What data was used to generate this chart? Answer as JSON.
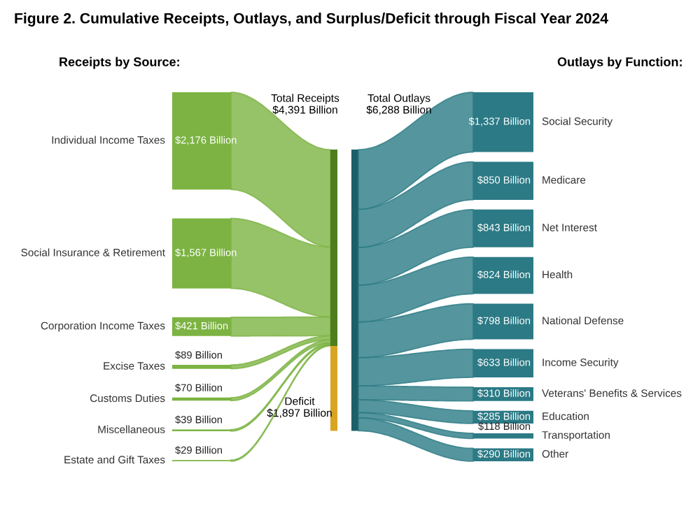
{
  "chart_data": [
    {
      "type": "other",
      "title": "Figure 2. Cumulative Receipts, Outlays, and Surplus/Deficit through Fiscal Year 2024",
      "subtitle": "Receipts by Source:",
      "categories": [
        "Individual Income Taxes",
        "Social Insurance & Retirement",
        "Corporation Income Taxes",
        "Excise Taxes",
        "Customs Duties",
        "Miscellaneous",
        "Estate and Gift Taxes"
      ],
      "values": [
        2176,
        1567,
        421,
        89,
        70,
        39,
        29
      ],
      "value_labels": [
        "$2,176 Billion",
        "$1,567 Billion",
        "$421 Billion",
        "$89 Billion",
        "$70 Billion",
        "$39 Billion",
        "$29 Billion"
      ],
      "color": "#7cb342",
      "totals": [
        "Total Receipts\n$4,391 Billion"
      ]
    },
    {
      "type": "other",
      "subtitle": "Outlays by Function:",
      "categories": [
        "Social Security",
        "Medicare",
        "Net Interest",
        "Health",
        "National Defense",
        "Income Security",
        "Veterans' Benefits & Services",
        "Education",
        "Transportation",
        "Other"
      ],
      "values": [
        1337,
        850,
        843,
        824,
        798,
        633,
        310,
        285,
        118,
        290
      ],
      "value_labels": [
        "$1,337 Billion",
        "$850 Billion",
        "$843 Billion",
        "$824 Billion",
        "$798 Billion",
        "$633 Billion",
        "$310 Billion",
        "$285 Billion",
        "$118 Billion",
        "$290 Billion"
      ],
      "color": "#2b7a85",
      "totals": [
        "Total Outlays\n$6,288 Billion"
      ],
      "annotations": [
        "Deficit\n$1,897 Billion"
      ]
    }
  ]
}
